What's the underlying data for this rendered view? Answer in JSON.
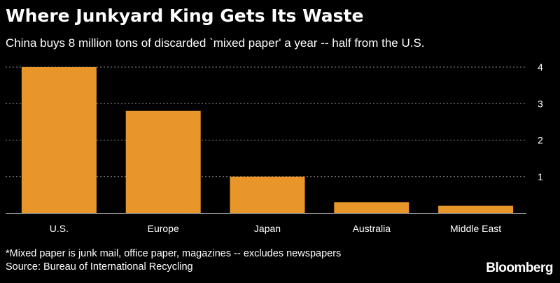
{
  "header": {
    "title": "Where Junkyard King Gets Its Waste",
    "subtitle": "China buys 8 million tons of discarded `mixed paper' a year -- half from the U.S."
  },
  "footer": {
    "footnote": "*Mixed paper is junk mail, office paper, magazines -- excludes newspapers",
    "source": "Source: Bureau of International Recycling",
    "brand": "Bloomberg"
  },
  "colors": {
    "bar": "#E8962A",
    "grid": "#8c8c8c",
    "background": "#000000"
  },
  "chart_data": {
    "type": "bar",
    "title": "Where Junkyard King Gets Its Waste",
    "subtitle": "China buys 8 million tons of discarded `mixed paper' a year -- half from the U.S.",
    "categories": [
      "U.S.",
      "Europe",
      "Japan",
      "Australia",
      "Middle East"
    ],
    "values": [
      4.0,
      2.8,
      1.0,
      0.3,
      0.2
    ],
    "yticks": [
      1,
      2,
      3,
      4
    ],
    "ylim": [
      0,
      4
    ],
    "xlabel": "",
    "ylabel": "",
    "grid": true,
    "legend": "none"
  }
}
